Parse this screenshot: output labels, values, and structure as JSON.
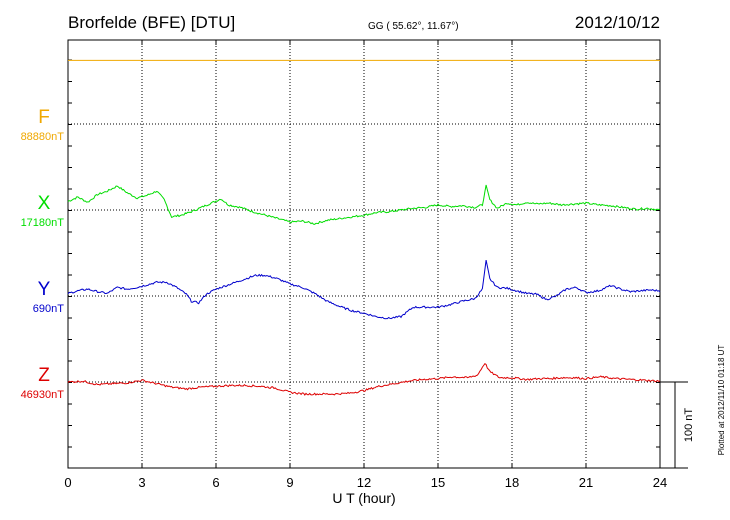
{
  "header": {
    "station": "Brorfelde (BFE)  [DTU]",
    "coords": "GG ( 55.62°,  11.67°)",
    "date": "2012/10/12"
  },
  "footer": {
    "plotted": "Plotted at 2012/11/10 01:18 UT"
  },
  "colors": {
    "F": "#f0a800",
    "X": "#00dd00",
    "Y": "#0000cc",
    "Z": "#dd0000",
    "axis": "#000000",
    "grid": "#000000"
  },
  "chart_data": {
    "type": "line",
    "title": "Brorfelde (BFE)  [DTU]",
    "xlabel": "U T (hour)",
    "xlim": [
      0,
      24
    ],
    "xticks": [
      "0",
      "3",
      "6",
      "9",
      "12",
      "15",
      "18",
      "21",
      "24"
    ],
    "grid": true,
    "scale_label": "100 nT",
    "scale_nT": 100,
    "series": [
      {
        "name": "F",
        "baseline_label": "88880nT",
        "points": [
          [
            0,
            74
          ],
          [
            6,
            74
          ],
          [
            12,
            74
          ],
          [
            18,
            74
          ],
          [
            24,
            74
          ]
        ]
      },
      {
        "name": "X",
        "baseline_label": "17180nT",
        "points": [
          [
            0,
            10
          ],
          [
            0.4,
            15
          ],
          [
            0.8,
            9
          ],
          [
            1.2,
            18
          ],
          [
            1.6,
            22
          ],
          [
            2.0,
            28
          ],
          [
            2.4,
            20
          ],
          [
            2.8,
            14
          ],
          [
            3.2,
            17
          ],
          [
            3.6,
            22
          ],
          [
            3.9,
            12
          ],
          [
            4.2,
            -8
          ],
          [
            4.6,
            -6
          ],
          [
            5.0,
            -2
          ],
          [
            5.4,
            3
          ],
          [
            5.8,
            8
          ],
          [
            6.2,
            13
          ],
          [
            6.5,
            6
          ],
          [
            7.0,
            3
          ],
          [
            7.5,
            -2
          ],
          [
            8.0,
            -6
          ],
          [
            8.5,
            -10
          ],
          [
            9.0,
            -14
          ],
          [
            9.5,
            -13
          ],
          [
            10.0,
            -16
          ],
          [
            10.5,
            -12
          ],
          [
            11.0,
            -10
          ],
          [
            11.5,
            -8
          ],
          [
            12.0,
            -6
          ],
          [
            12.5,
            -3
          ],
          [
            13.0,
            -2
          ],
          [
            13.5,
            0
          ],
          [
            14.0,
            2
          ],
          [
            14.5,
            3
          ],
          [
            15.0,
            6
          ],
          [
            15.5,
            4
          ],
          [
            16.0,
            5
          ],
          [
            16.5,
            3
          ],
          [
            16.8,
            6
          ],
          [
            16.95,
            28
          ],
          [
            17.1,
            12
          ],
          [
            17.4,
            2
          ],
          [
            17.8,
            8
          ],
          [
            18.2,
            6
          ],
          [
            18.6,
            9
          ],
          [
            19.0,
            7
          ],
          [
            19.5,
            8
          ],
          [
            20.0,
            6
          ],
          [
            20.5,
            7
          ],
          [
            21.0,
            8
          ],
          [
            21.5,
            6
          ],
          [
            22.0,
            5
          ],
          [
            22.5,
            3
          ],
          [
            23.0,
            1
          ],
          [
            23.5,
            2
          ],
          [
            24.0,
            0
          ]
        ]
      },
      {
        "name": "Y",
        "baseline_label": "690nT",
        "points": [
          [
            0,
            3
          ],
          [
            0.4,
            6
          ],
          [
            0.8,
            8
          ],
          [
            1.2,
            5
          ],
          [
            1.6,
            3
          ],
          [
            2.0,
            10
          ],
          [
            2.4,
            8
          ],
          [
            2.8,
            10
          ],
          [
            3.2,
            13
          ],
          [
            3.6,
            16
          ],
          [
            4.0,
            16
          ],
          [
            4.4,
            10
          ],
          [
            4.8,
            2
          ],
          [
            5.0,
            -6
          ],
          [
            5.3,
            -8
          ],
          [
            5.6,
            2
          ],
          [
            6.0,
            8
          ],
          [
            6.4,
            12
          ],
          [
            6.8,
            16
          ],
          [
            7.2,
            20
          ],
          [
            7.6,
            24
          ],
          [
            8.0,
            24
          ],
          [
            8.5,
            20
          ],
          [
            9.0,
            14
          ],
          [
            9.5,
            10
          ],
          [
            10.0,
            3
          ],
          [
            10.5,
            -6
          ],
          [
            11.0,
            -12
          ],
          [
            11.5,
            -17
          ],
          [
            12.0,
            -20
          ],
          [
            12.5,
            -24
          ],
          [
            13.0,
            -26
          ],
          [
            13.5,
            -24
          ],
          [
            14.0,
            -13
          ],
          [
            14.5,
            -13
          ],
          [
            15.0,
            -13
          ],
          [
            15.5,
            -10
          ],
          [
            16.0,
            -6
          ],
          [
            16.5,
            -3
          ],
          [
            16.8,
            8
          ],
          [
            16.95,
            41
          ],
          [
            17.1,
            20
          ],
          [
            17.4,
            10
          ],
          [
            17.8,
            9
          ],
          [
            18.2,
            6
          ],
          [
            18.6,
            3
          ],
          [
            19.0,
            2
          ],
          [
            19.4,
            -4
          ],
          [
            19.8,
            0
          ],
          [
            20.2,
            8
          ],
          [
            20.6,
            10
          ],
          [
            21.0,
            4
          ],
          [
            21.5,
            6
          ],
          [
            22.0,
            12
          ],
          [
            22.4,
            8
          ],
          [
            22.8,
            5
          ],
          [
            23.2,
            6
          ],
          [
            23.6,
            7
          ],
          [
            24.0,
            6
          ]
        ]
      },
      {
        "name": "Z",
        "baseline_label": "46930nT",
        "points": [
          [
            0,
            0
          ],
          [
            0.6,
            1
          ],
          [
            1.2,
            -3
          ],
          [
            1.8,
            -2
          ],
          [
            2.4,
            -1
          ],
          [
            3.0,
            2
          ],
          [
            3.6,
            -2
          ],
          [
            4.2,
            -6
          ],
          [
            4.8,
            -8
          ],
          [
            5.4,
            -6
          ],
          [
            6.0,
            -5
          ],
          [
            6.6,
            -4
          ],
          [
            7.2,
            -4
          ],
          [
            7.8,
            -5
          ],
          [
            8.4,
            -7
          ],
          [
            9.0,
            -12
          ],
          [
            9.6,
            -14
          ],
          [
            10.2,
            -14
          ],
          [
            10.8,
            -14
          ],
          [
            11.4,
            -13
          ],
          [
            12.0,
            -10
          ],
          [
            12.6,
            -5
          ],
          [
            13.2,
            -2
          ],
          [
            13.8,
            1
          ],
          [
            14.4,
            3
          ],
          [
            15.0,
            4
          ],
          [
            15.6,
            6
          ],
          [
            16.2,
            5
          ],
          [
            16.6,
            8
          ],
          [
            16.9,
            22
          ],
          [
            17.1,
            12
          ],
          [
            17.5,
            5
          ],
          [
            18.0,
            5
          ],
          [
            18.6,
            3
          ],
          [
            19.2,
            4
          ],
          [
            19.6,
            4
          ],
          [
            20.0,
            5
          ],
          [
            20.5,
            5
          ],
          [
            21.0,
            4
          ],
          [
            21.6,
            6
          ],
          [
            22.2,
            4
          ],
          [
            22.8,
            3
          ],
          [
            23.4,
            2
          ],
          [
            24.0,
            1
          ]
        ]
      }
    ]
  }
}
